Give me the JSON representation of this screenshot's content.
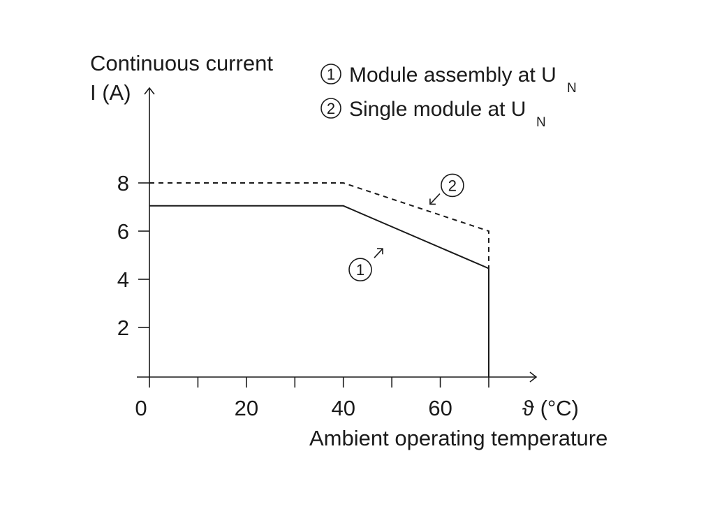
{
  "chart_data": {
    "type": "line",
    "ylabel_line1": "Continuous current",
    "ylabel_line2": "I (A)",
    "xlabel_unit": "ϑ (°C)",
    "xlabel": "Ambient operating temperature",
    "xlim": [
      0,
      70
    ],
    "ylim": [
      0,
      9
    ],
    "x_ticks": [
      0,
      10,
      20,
      30,
      40,
      50,
      60,
      70
    ],
    "x_tick_labels": [
      {
        "x": 0,
        "label": "0"
      },
      {
        "x": 20,
        "label": "20"
      },
      {
        "x": 40,
        "label": "40"
      },
      {
        "x": 60,
        "label": "60"
      }
    ],
    "y_tick_labels": [
      {
        "y": 2,
        "label": "2"
      },
      {
        "y": 4,
        "label": "4"
      },
      {
        "y": 6,
        "label": "6"
      },
      {
        "y": 8,
        "label": "8"
      }
    ],
    "legend": [
      {
        "marker": "1",
        "text": "Module assembly at U",
        "sub": "N"
      },
      {
        "marker": "2",
        "text": "Single module at U",
        "sub": "N"
      }
    ],
    "series": [
      {
        "marker": "1",
        "style": "solid",
        "x": [
          0,
          40,
          70
        ],
        "y": [
          7.05,
          7.05,
          4.45
        ]
      },
      {
        "marker": "2",
        "style": "dashed",
        "x": [
          0,
          40,
          70
        ],
        "y": [
          8.0,
          8.0,
          6.0
        ]
      }
    ],
    "callouts": [
      {
        "marker": "1",
        "x": 43.5,
        "y": 4.4
      },
      {
        "marker": "2",
        "x": 62.5,
        "y": 7.9
      }
    ]
  }
}
